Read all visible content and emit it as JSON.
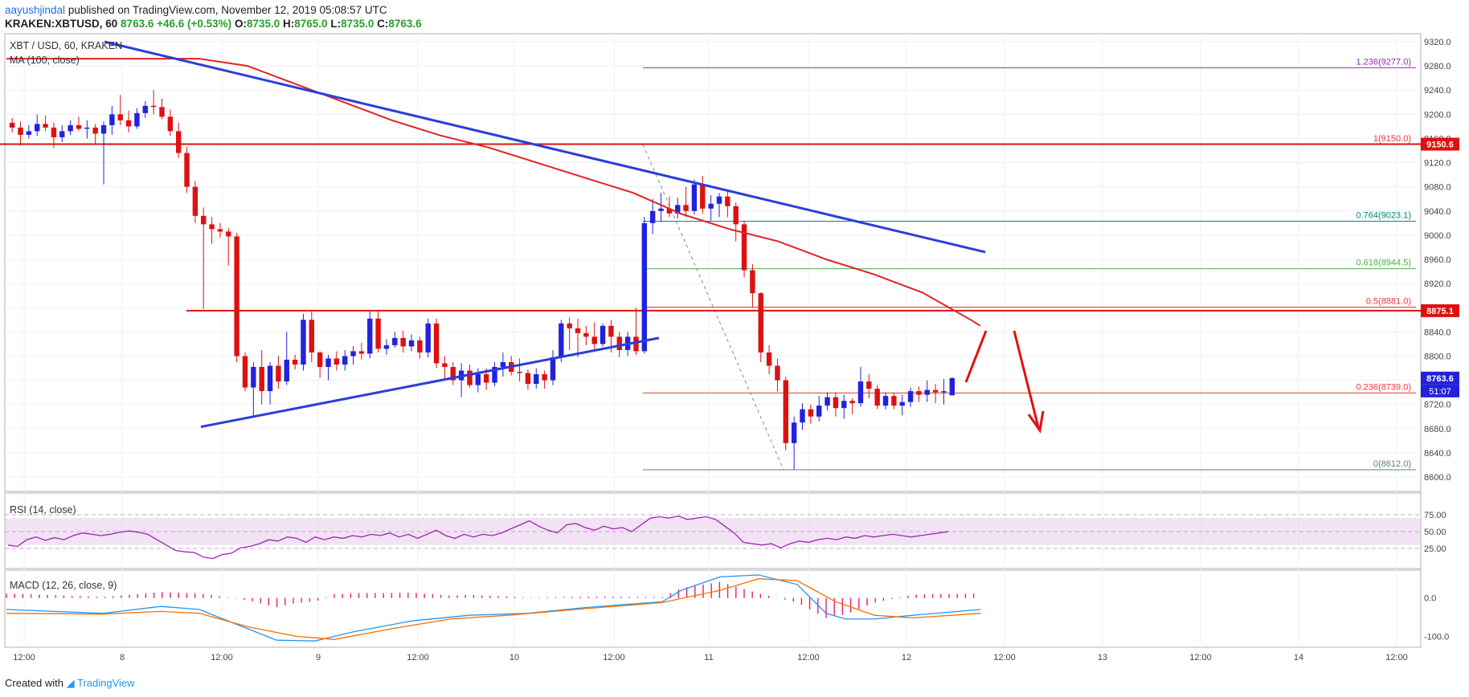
{
  "header": {
    "author": "aayushjindal",
    "published": "published on TradingView.com, November 12, 2019 05:08:57 UTC",
    "symbol_line_prefix": "KRAKEN:XBTUSD, 60",
    "last": "8763.6",
    "change": "+46.6 (+0.53%)",
    "o_label": "O:",
    "o_val": "8735.0",
    "h_label": "H:",
    "h_val": "8765.0",
    "l_label": "L:",
    "l_val": "8735.0",
    "c_label": "C:",
    "c_val": "8763.6"
  },
  "footer": {
    "created": "Created with",
    "brand": "TradingView"
  },
  "legend": {
    "pair": "XBT / USD, 60, KRAKEN",
    "ma": "MA (100, close)",
    "rsi": "RSI (14, close)",
    "macd": "MACD (12, 26, close, 9)"
  },
  "colors": {
    "up": "#2222dd",
    "down": "#dd1111",
    "ma": "#e32222",
    "trend": "#2b3ed8",
    "fib_top": "#9c27b0",
    "fib_mid": "#00897b",
    "fib_green": "#4caf50",
    "fib_red": "#e53935",
    "rsi": "#9c27b0",
    "macd": "#2196f3",
    "signal": "#ff6d00",
    "hist": "#e91e63"
  },
  "chart_data": {
    "type": "candlestick",
    "symbol": "XBT / USD, 60, KRAKEN",
    "y_axis": {
      "min": 8600,
      "max": 9320,
      "ticks": [
        "9320.0",
        "9280.0",
        "9240.0",
        "9200.0",
        "9160.0",
        "9120.0",
        "9080.0",
        "9040.0",
        "9000.0",
        "8960.0",
        "8920.0",
        "8880.0",
        "8840.0",
        "8800.0",
        "8760.0",
        "8720.0",
        "8680.0",
        "8640.0",
        "8600.0"
      ]
    },
    "x_axis": {
      "ticks": [
        "12:00",
        "8",
        "12:00",
        "9",
        "12:00",
        "10",
        "12:00",
        "11",
        "12:00",
        "12",
        "12:00",
        "13",
        "12:00",
        "14",
        "12:00"
      ]
    },
    "candles": [
      [
        9186,
        9194,
        9170,
        9178
      ],
      [
        9178,
        9188,
        9148,
        9166
      ],
      [
        9166,
        9182,
        9160,
        9172
      ],
      [
        9172,
        9200,
        9164,
        9184
      ],
      [
        9184,
        9198,
        9172,
        9178
      ],
      [
        9178,
        9186,
        9144,
        9162
      ],
      [
        9162,
        9182,
        9154,
        9172
      ],
      [
        9172,
        9190,
        9166,
        9182
      ],
      [
        9182,
        9196,
        9172,
        9176
      ],
      [
        9176,
        9190,
        9160,
        9178
      ],
      [
        9178,
        9184,
        9150,
        9168
      ],
      [
        9168,
        9188,
        9084,
        9182
      ],
      [
        9182,
        9214,
        9166,
        9200
      ],
      [
        9200,
        9232,
        9182,
        9190
      ],
      [
        9190,
        9206,
        9170,
        9180
      ],
      [
        9180,
        9210,
        9176,
        9202
      ],
      [
        9202,
        9222,
        9194,
        9214
      ],
      [
        9214,
        9240,
        9200,
        9212
      ],
      [
        9212,
        9226,
        9192,
        9196
      ],
      [
        9196,
        9208,
        9164,
        9172
      ],
      [
        9172,
        9186,
        9128,
        9136
      ],
      [
        9136,
        9146,
        9070,
        9080
      ],
      [
        9080,
        9090,
        9020,
        9032
      ],
      [
        9032,
        9046,
        8878,
        9018
      ],
      [
        9018,
        9030,
        8986,
        9010
      ],
      [
        9010,
        9020,
        8996,
        9006
      ],
      [
        9006,
        9012,
        8950,
        8998
      ],
      [
        8998,
        9004,
        8790,
        8800
      ],
      [
        8800,
        8806,
        8742,
        8748
      ],
      [
        8748,
        8790,
        8700,
        8782
      ],
      [
        8782,
        8810,
        8720,
        8742
      ],
      [
        8742,
        8790,
        8720,
        8784
      ],
      [
        8784,
        8800,
        8746,
        8758
      ],
      [
        8758,
        8840,
        8752,
        8794
      ],
      [
        8794,
        8802,
        8778,
        8786
      ],
      [
        8786,
        8870,
        8776,
        8860
      ],
      [
        8860,
        8874,
        8790,
        8806
      ],
      [
        8806,
        8808,
        8764,
        8782
      ],
      [
        8782,
        8802,
        8760,
        8796
      ],
      [
        8796,
        8808,
        8776,
        8786
      ],
      [
        8786,
        8810,
        8776,
        8800
      ],
      [
        8800,
        8816,
        8786,
        8808
      ],
      [
        8808,
        8822,
        8794,
        8804
      ],
      [
        8804,
        8874,
        8796,
        8862
      ],
      [
        8862,
        8874,
        8806,
        8812
      ],
      [
        8812,
        8828,
        8802,
        8818
      ],
      [
        8818,
        8840,
        8814,
        8830
      ],
      [
        8830,
        8842,
        8806,
        8816
      ],
      [
        8816,
        8836,
        8808,
        8826
      ],
      [
        8826,
        8832,
        8796,
        8806
      ],
      [
        8806,
        8862,
        8798,
        8854
      ],
      [
        8854,
        8862,
        8780,
        8788
      ],
      [
        8788,
        8800,
        8760,
        8782
      ],
      [
        8782,
        8790,
        8752,
        8760
      ],
      [
        8760,
        8788,
        8732,
        8776
      ],
      [
        8776,
        8786,
        8748,
        8752
      ],
      [
        8752,
        8780,
        8740,
        8770
      ],
      [
        8770,
        8780,
        8744,
        8756
      ],
      [
        8756,
        8790,
        8750,
        8782
      ],
      [
        8782,
        8806,
        8766,
        8790
      ],
      [
        8790,
        8800,
        8768,
        8774
      ],
      [
        8774,
        8796,
        8758,
        8772
      ],
      [
        8772,
        8778,
        8744,
        8754
      ],
      [
        8754,
        8780,
        8746,
        8770
      ],
      [
        8770,
        8776,
        8746,
        8760
      ],
      [
        8760,
        8810,
        8752,
        8798
      ],
      [
        8798,
        8860,
        8790,
        8854
      ],
      [
        8854,
        8864,
        8810,
        8846
      ],
      [
        8846,
        8862,
        8798,
        8838
      ],
      [
        8838,
        8850,
        8818,
        8832
      ],
      [
        8832,
        8856,
        8810,
        8820
      ],
      [
        8820,
        8854,
        8816,
        8850
      ],
      [
        8850,
        8860,
        8806,
        8832
      ],
      [
        8832,
        8840,
        8798,
        8810
      ],
      [
        8810,
        8840,
        8800,
        8832
      ],
      [
        8832,
        8880,
        8802,
        8808
      ],
      [
        8808,
        9030,
        8804,
        9020
      ],
      [
        9020,
        9060,
        9002,
        9040
      ],
      [
        9040,
        9070,
        9022,
        9044
      ],
      [
        9044,
        9064,
        9030,
        9036
      ],
      [
        9036,
        9062,
        9028,
        9050
      ],
      [
        9050,
        9080,
        9030,
        9040
      ],
      [
        9040,
        9092,
        9034,
        9084
      ],
      [
        9084,
        9098,
        9036,
        9044
      ],
      [
        9044,
        9066,
        9024,
        9052
      ],
      [
        9052,
        9070,
        9030,
        9064
      ],
      [
        9064,
        9072,
        9030,
        9048
      ],
      [
        9048,
        9054,
        8990,
        9018
      ],
      [
        9018,
        9024,
        8930,
        8942
      ],
      [
        8942,
        8952,
        8880,
        8904
      ],
      [
        8904,
        8906,
        8790,
        8806
      ],
      [
        8806,
        8818,
        8770,
        8784
      ],
      [
        8784,
        8796,
        8742,
        8760
      ],
      [
        8760,
        8766,
        8644,
        8656
      ],
      [
        8656,
        8700,
        8612,
        8690
      ],
      [
        8690,
        8722,
        8678,
        8712
      ],
      [
        8712,
        8720,
        8688,
        8700
      ],
      [
        8700,
        8734,
        8692,
        8718
      ],
      [
        8718,
        8740,
        8710,
        8732
      ],
      [
        8732,
        8740,
        8700,
        8714
      ],
      [
        8714,
        8736,
        8696,
        8726
      ],
      [
        8726,
        8730,
        8704,
        8722
      ],
      [
        8722,
        8782,
        8716,
        8758
      ],
      [
        8758,
        8770,
        8730,
        8746
      ],
      [
        8746,
        8752,
        8712,
        8718
      ],
      [
        8718,
        8740,
        8712,
        8734
      ],
      [
        8734,
        8740,
        8712,
        8718
      ],
      [
        8718,
        8736,
        8702,
        8724
      ],
      [
        8724,
        8748,
        8716,
        8742
      ],
      [
        8742,
        8750,
        8724,
        8736
      ],
      [
        8736,
        8760,
        8724,
        8744
      ],
      [
        8744,
        8754,
        8722,
        8740
      ],
      [
        8740,
        8762,
        8720,
        8742
      ],
      [
        8735,
        8765,
        8735,
        8763.6
      ]
    ],
    "ma100": [
      [
        0,
        9292
      ],
      [
        100,
        9292
      ],
      [
        200,
        9292
      ],
      [
        250,
        9280
      ],
      [
        300,
        9250
      ],
      [
        350,
        9220
      ],
      [
        400,
        9190
      ],
      [
        450,
        9165
      ],
      [
        500,
        9145
      ],
      [
        550,
        9120
      ],
      [
        600,
        9095
      ],
      [
        650,
        9070
      ],
      [
        700,
        9035
      ],
      [
        750,
        9010
      ],
      [
        800,
        8990
      ],
      [
        850,
        8960
      ],
      [
        900,
        8935
      ],
      [
        950,
        8905
      ],
      [
        1000,
        8860
      ],
      [
        1010,
        8850
      ]
    ],
    "fib": [
      {
        "label": "1.236(9277.0)",
        "value": 9277.0,
        "color": "fib_top"
      },
      {
        "label": "1(9150.0)",
        "value": 9150.0,
        "color": "fib_red"
      },
      {
        "label": "0.764(9023.1)",
        "value": 9023.1,
        "color": "fib_mid"
      },
      {
        "label": "0.618(8944.5)",
        "value": 8944.5,
        "color": "fib_green"
      },
      {
        "label": "0.5(8881.0)",
        "value": 8881.0,
        "color": "fib_red"
      },
      {
        "label": "0.236(8739.0)",
        "value": 8739.0,
        "color": "fib_red"
      },
      {
        "label": "0(8612.0)",
        "value": 8612.0,
        "color": "fib_gray"
      }
    ],
    "levels": [
      {
        "label": "9150.6",
        "value": 9150.6
      },
      {
        "label": "8875.1",
        "value": 8875.1
      }
    ],
    "last_price": {
      "label": "8763.6",
      "value": 8763.6,
      "timer": "51:07"
    },
    "trendlines": [
      {
        "name": "descending",
        "from": [
          130,
          9320
        ],
        "to": [
          1226,
          8972
        ]
      },
      {
        "name": "ascending",
        "from": [
          250,
          8683
        ],
        "to": [
          820,
          8830
        ]
      }
    ],
    "rsi": {
      "y_ticks": [
        "75.00",
        "50.00",
        "25.00"
      ],
      "values": [
        30,
        28,
        38,
        42,
        37,
        41,
        38,
        44,
        48,
        46,
        44,
        46,
        49,
        51,
        49,
        46,
        38,
        30,
        22,
        20,
        19,
        12,
        10,
        16,
        18,
        26,
        28,
        32,
        38,
        36,
        42,
        40,
        34,
        42,
        38,
        42,
        40,
        44,
        42,
        46,
        44,
        48,
        42,
        46,
        40,
        46,
        52,
        44,
        40,
        46,
        42,
        46,
        44,
        48,
        54,
        60,
        66,
        58,
        52,
        48,
        60,
        62,
        56,
        52,
        58,
        54,
        56,
        50,
        60,
        70,
        72,
        70,
        73,
        68,
        70,
        72,
        68,
        58,
        48,
        34,
        32,
        30,
        32,
        26,
        32,
        36,
        34,
        38,
        40,
        38,
        42,
        40,
        44,
        42,
        44,
        46,
        44,
        42,
        44,
        46,
        48,
        50
      ],
      "band": [
        30,
        70
      ]
    },
    "macd": {
      "y_ticks": [
        "0.0",
        "-100.0"
      ],
      "macd": [
        [
          0,
          -30
        ],
        [
          100,
          -40
        ],
        [
          160,
          -22
        ],
        [
          200,
          -30
        ],
        [
          240,
          -70
        ],
        [
          280,
          -110
        ],
        [
          320,
          -112
        ],
        [
          360,
          -88
        ],
        [
          420,
          -60
        ],
        [
          480,
          -45
        ],
        [
          540,
          -40
        ],
        [
          600,
          -25
        ],
        [
          680,
          -10
        ],
        [
          700,
          20
        ],
        [
          740,
          55
        ],
        [
          780,
          60
        ],
        [
          820,
          35
        ],
        [
          850,
          -40
        ],
        [
          870,
          -55
        ],
        [
          900,
          -55
        ],
        [
          940,
          -45
        ],
        [
          1010,
          -30
        ]
      ],
      "signal": [
        [
          0,
          -40
        ],
        [
          100,
          -42
        ],
        [
          160,
          -35
        ],
        [
          200,
          -40
        ],
        [
          250,
          -75
        ],
        [
          300,
          -100
        ],
        [
          340,
          -108
        ],
        [
          400,
          -80
        ],
        [
          460,
          -55
        ],
        [
          520,
          -45
        ],
        [
          600,
          -28
        ],
        [
          680,
          -12
        ],
        [
          740,
          20
        ],
        [
          780,
          50
        ],
        [
          820,
          45
        ],
        [
          860,
          -10
        ],
        [
          900,
          -45
        ],
        [
          940,
          -52
        ],
        [
          1010,
          -40
        ]
      ]
    },
    "annotation": {
      "arrows": "up then down"
    }
  }
}
